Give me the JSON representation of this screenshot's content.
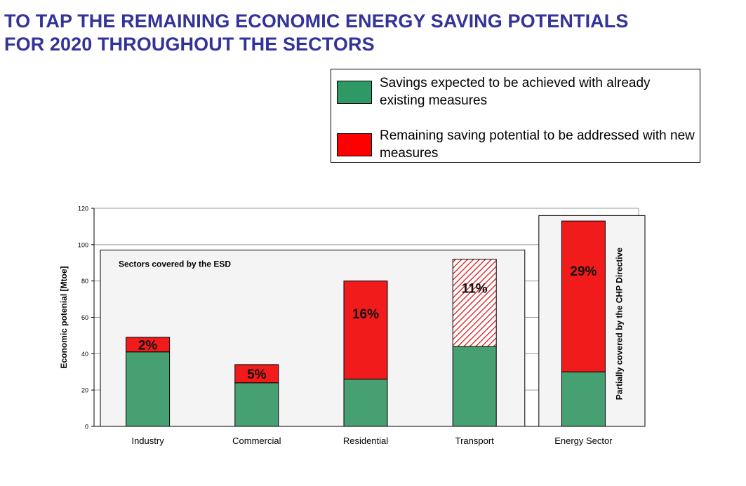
{
  "title": {
    "line1": "TO TAP THE REMAINING ECONOMIC ENERGY SAVING POTENTIALS",
    "line2": "FOR 2020 THROUGHOUT THE SECTORS"
  },
  "legend": [
    {
      "label": "Savings expected to be achieved with already existing measures",
      "color": "#2e9964"
    },
    {
      "label": "Remaining saving potential to be addressed with new measures",
      "color": "#ff0000"
    }
  ],
  "chart_data": {
    "type": "bar",
    "stacked": true,
    "ylabel": "Economic potenial [Mtoe]",
    "ylim": [
      0,
      120
    ],
    "yticks": [
      0,
      20,
      40,
      60,
      80,
      100,
      120
    ],
    "grid": true,
    "categories": [
      "Industry",
      "Commercial",
      "Residential",
      "Transport",
      "Energy Sector"
    ],
    "series": [
      {
        "name": "Savings expected to be achieved with already existing measures",
        "values": [
          41,
          24,
          26,
          44,
          30
        ],
        "color": "#46a071"
      },
      {
        "name": "Remaining saving potential to be addressed with new measures",
        "values": [
          8,
          10,
          54,
          48,
          83
        ],
        "color": "#f21b1b"
      }
    ],
    "hatched": [
      false,
      false,
      false,
      true,
      false
    ],
    "segment_labels": [
      "2%",
      "5%",
      "16%",
      "11%",
      "29%"
    ],
    "annotations": {
      "esd_box_label": "Sectors covered by the ESD",
      "esd_box_ymax": 97,
      "esd_box_categories": [
        "Industry",
        "Commercial",
        "Residential",
        "Transport"
      ],
      "chp_box_label": "Partially covered by the CHP Directive",
      "chp_box_ymax": 116,
      "chp_box_categories": [
        "Energy Sector"
      ]
    }
  }
}
